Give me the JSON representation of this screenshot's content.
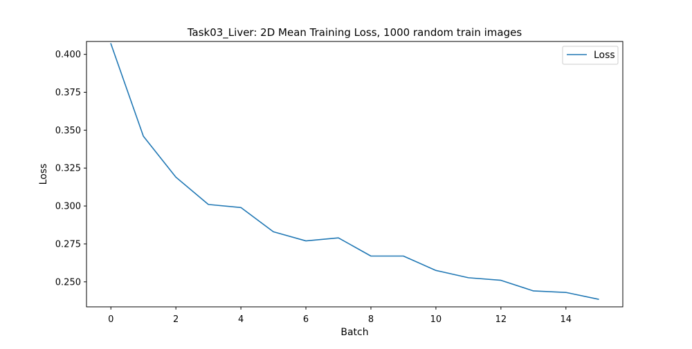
{
  "chart_data": {
    "type": "line",
    "title": "Task03_Liver: 2D Mean Training Loss, 1000 random train images",
    "xlabel": "Batch",
    "ylabel": "Loss",
    "xlim": [
      -0.75,
      15.75
    ],
    "ylim": [
      0.2335,
      0.4085
    ],
    "xticks": [
      0,
      2,
      4,
      6,
      8,
      10,
      12,
      14
    ],
    "yticks": [
      0.25,
      0.275,
      0.3,
      0.325,
      0.35,
      0.375,
      0.4
    ],
    "ytick_labels": [
      "0.250",
      "0.275",
      "0.300",
      "0.325",
      "0.350",
      "0.375",
      "0.400"
    ],
    "grid": false,
    "legend_position": "upper right",
    "series": [
      {
        "name": "Loss",
        "color": "#1f77b4",
        "x": [
          0,
          1,
          2,
          3,
          4,
          5,
          6,
          7,
          8,
          9,
          10,
          11,
          12,
          13,
          14,
          15
        ],
        "y": [
          0.407,
          0.346,
          0.319,
          0.301,
          0.299,
          0.283,
          0.277,
          0.279,
          0.267,
          0.267,
          0.2575,
          0.2527,
          0.251,
          0.244,
          0.243,
          0.2385
        ]
      }
    ]
  }
}
